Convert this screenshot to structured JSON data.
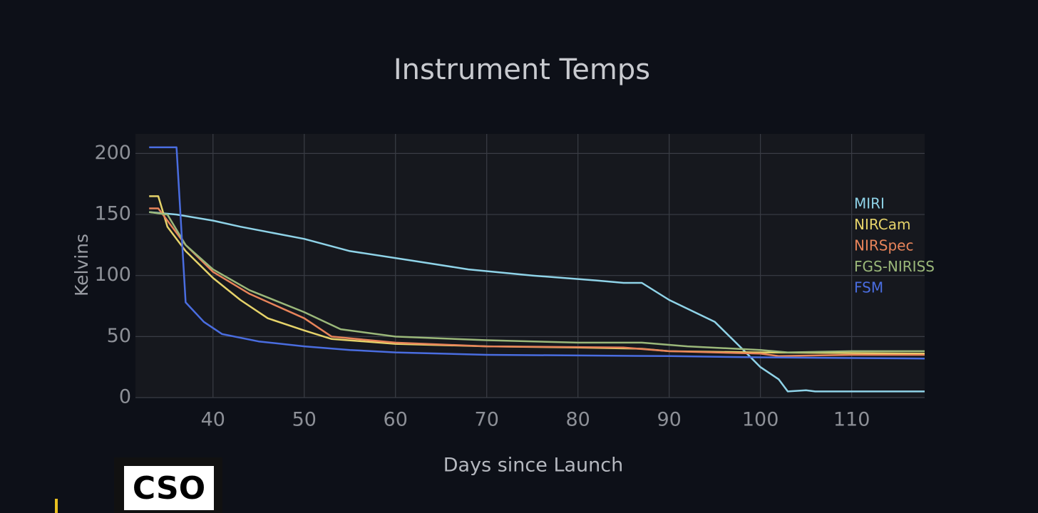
{
  "chart_data": {
    "type": "line",
    "title": "Instrument Temps",
    "x_label": "Days since Launch",
    "y_label": "Kelvins",
    "xlim": [
      31.5,
      118
    ],
    "ylim": [
      0,
      216
    ],
    "xticks": [
      40,
      50,
      60,
      70,
      80,
      90,
      100,
      110
    ],
    "yticks": [
      0,
      50,
      100,
      150,
      200
    ],
    "grid": true,
    "series": [
      {
        "name": "MIRI",
        "color": "#8fd3e8",
        "x": [
          33,
          36,
          40,
          43,
          50,
          55,
          62,
          68,
          75,
          82,
          85,
          87,
          90,
          95,
          98,
          100,
          102,
          103,
          105,
          106,
          118
        ],
        "values": [
          152,
          150,
          145,
          140,
          130,
          120,
          112,
          105,
          100,
          96,
          94,
          94,
          80,
          62,
          40,
          25,
          15,
          5,
          6,
          5,
          5
        ]
      },
      {
        "name": "NIRCam",
        "color": "#e6d36a",
        "x": [
          33,
          34,
          35,
          37,
          40,
          43,
          46,
          50,
          53,
          60,
          70,
          80,
          87,
          90,
          100,
          118
        ],
        "values": [
          165,
          165,
          140,
          120,
          98,
          80,
          65,
          55,
          48,
          44,
          42,
          41,
          40,
          38,
          37,
          36
        ]
      },
      {
        "name": "NIRSpec",
        "color": "#e8845a",
        "x": [
          33,
          34,
          35,
          37,
          40,
          44,
          50,
          53,
          60,
          70,
          85,
          90,
          100,
          102,
          110,
          118
        ],
        "values": [
          155,
          155,
          145,
          125,
          103,
          85,
          65,
          50,
          45,
          42,
          41,
          38,
          36,
          34,
          35,
          35
        ]
      },
      {
        "name": "FGS-NIRISS",
        "color": "#9bb87a",
        "x": [
          33,
          35,
          37,
          40,
          44,
          50,
          54,
          60,
          70,
          80,
          87,
          92,
          100,
          103,
          110,
          118
        ],
        "values": [
          152,
          150,
          125,
          105,
          88,
          70,
          56,
          50,
          47,
          45,
          45,
          42,
          39,
          37,
          38,
          38
        ]
      },
      {
        "name": "FSM",
        "color": "#4a6de0",
        "x": [
          33,
          36,
          37,
          39,
          41,
          45,
          50,
          55,
          60,
          70,
          90,
          100,
          118
        ],
        "values": [
          205,
          205,
          78,
          62,
          52,
          46,
          42,
          39,
          37,
          35,
          34,
          33,
          32
        ]
      }
    ]
  },
  "logo": "CSO"
}
